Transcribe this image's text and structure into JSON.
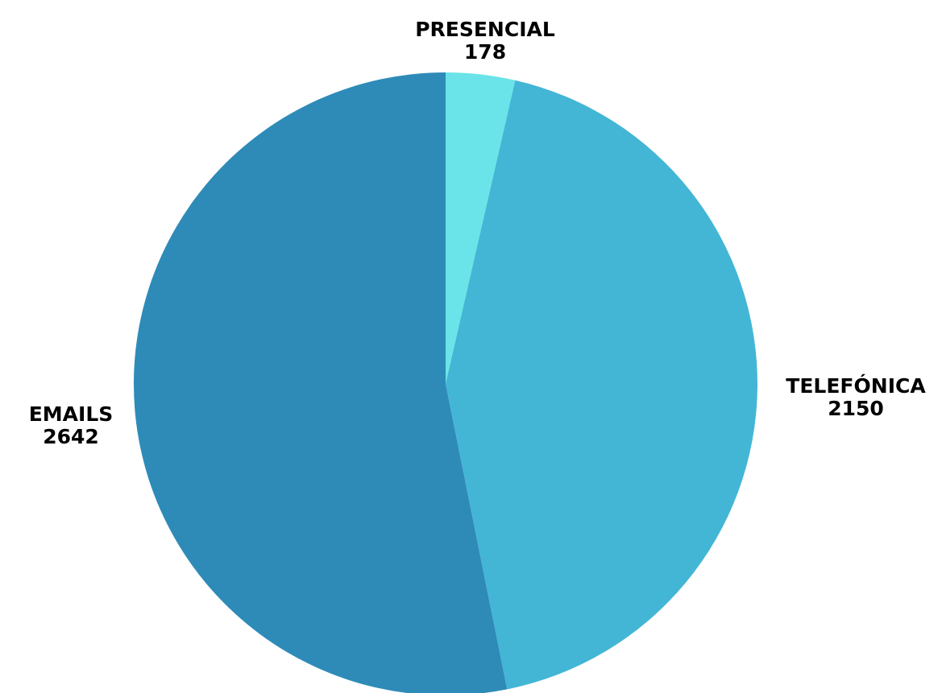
{
  "chart_data": {
    "type": "pie",
    "categories": [
      "PRESENCIAL",
      "TELEFÓNICA",
      "EMAILS"
    ],
    "values": [
      178,
      2150,
      2642
    ],
    "colors": [
      "#6ae4e8",
      "#43b6d6",
      "#2e8bb8"
    ],
    "title": "",
    "legend": "none",
    "start_angle": "12 o'clock",
    "direction": "clockwise",
    "data_labels": "category and value, outside slices"
  }
}
